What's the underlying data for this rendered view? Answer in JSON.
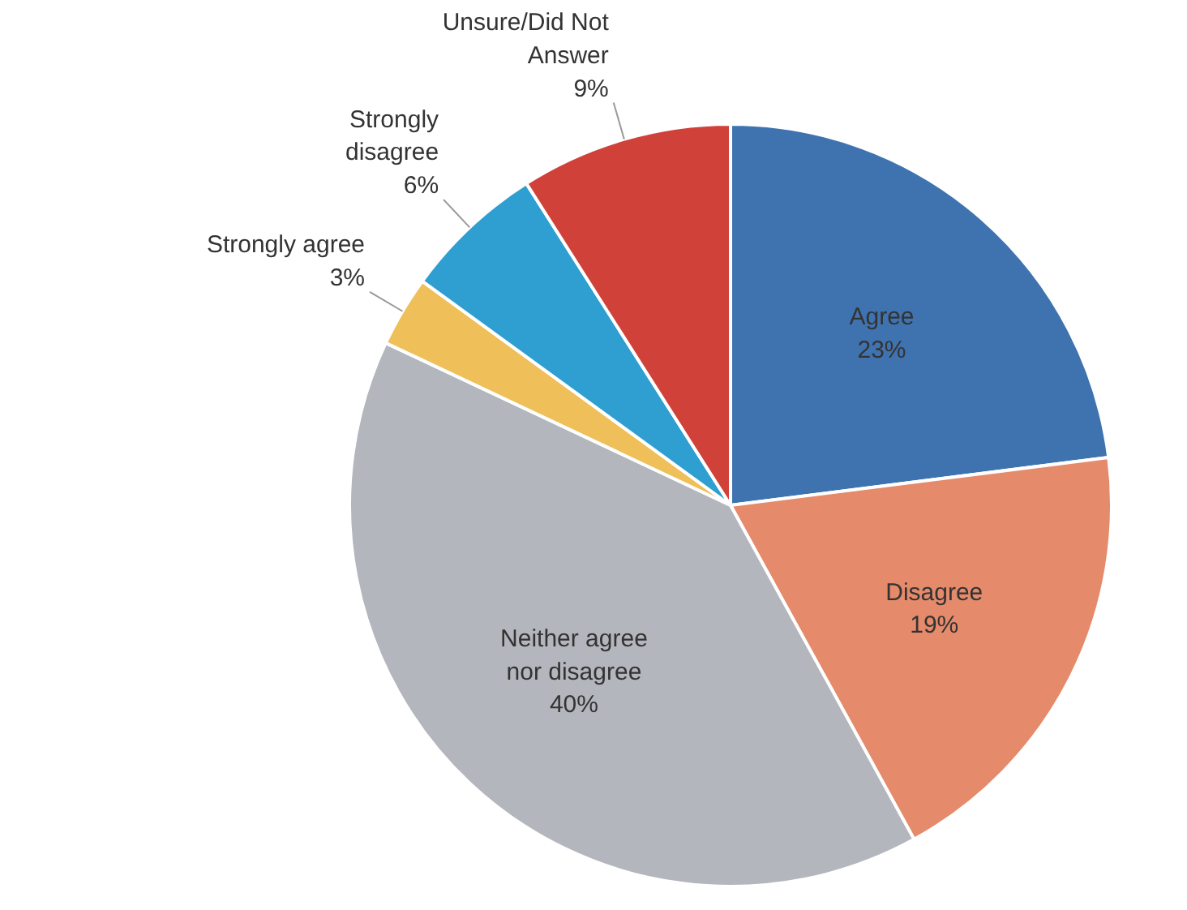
{
  "chart_data": {
    "type": "pie",
    "categories": [
      "Agree",
      "Disagree",
      "Neither agree nor disagree",
      "Strongly agree",
      "Strongly disagree",
      "Unsure/Did Not Answer"
    ],
    "values": [
      23,
      19,
      40,
      3,
      6,
      9
    ],
    "colors": [
      "#3f73b0",
      "#e58a6a",
      "#b4b6bd",
      "#efc05a",
      "#2e9fd0",
      "#d0413a"
    ],
    "value_labels": [
      "23%",
      "19%",
      "40%",
      "3%",
      "6%",
      "9%"
    ]
  }
}
